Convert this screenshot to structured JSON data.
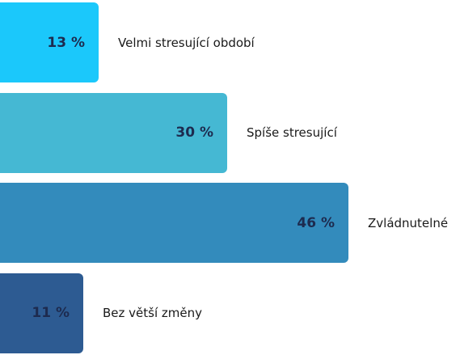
{
  "chart_data": {
    "type": "bar",
    "orientation": "horizontal",
    "categories": [
      "Velmi stresující období",
      "Spíše stresující",
      "Zvládnutelné",
      "Bez větší změny"
    ],
    "values": [
      13,
      30,
      46,
      11
    ],
    "value_labels": [
      "13 %",
      "30 %",
      "46 %",
      "11 %"
    ],
    "colors": [
      "#1bc8fb",
      "#45b8d3",
      "#338bbc",
      "#2d5b92"
    ],
    "xlim": [
      0,
      46
    ],
    "grid": false,
    "legend": "none"
  }
}
